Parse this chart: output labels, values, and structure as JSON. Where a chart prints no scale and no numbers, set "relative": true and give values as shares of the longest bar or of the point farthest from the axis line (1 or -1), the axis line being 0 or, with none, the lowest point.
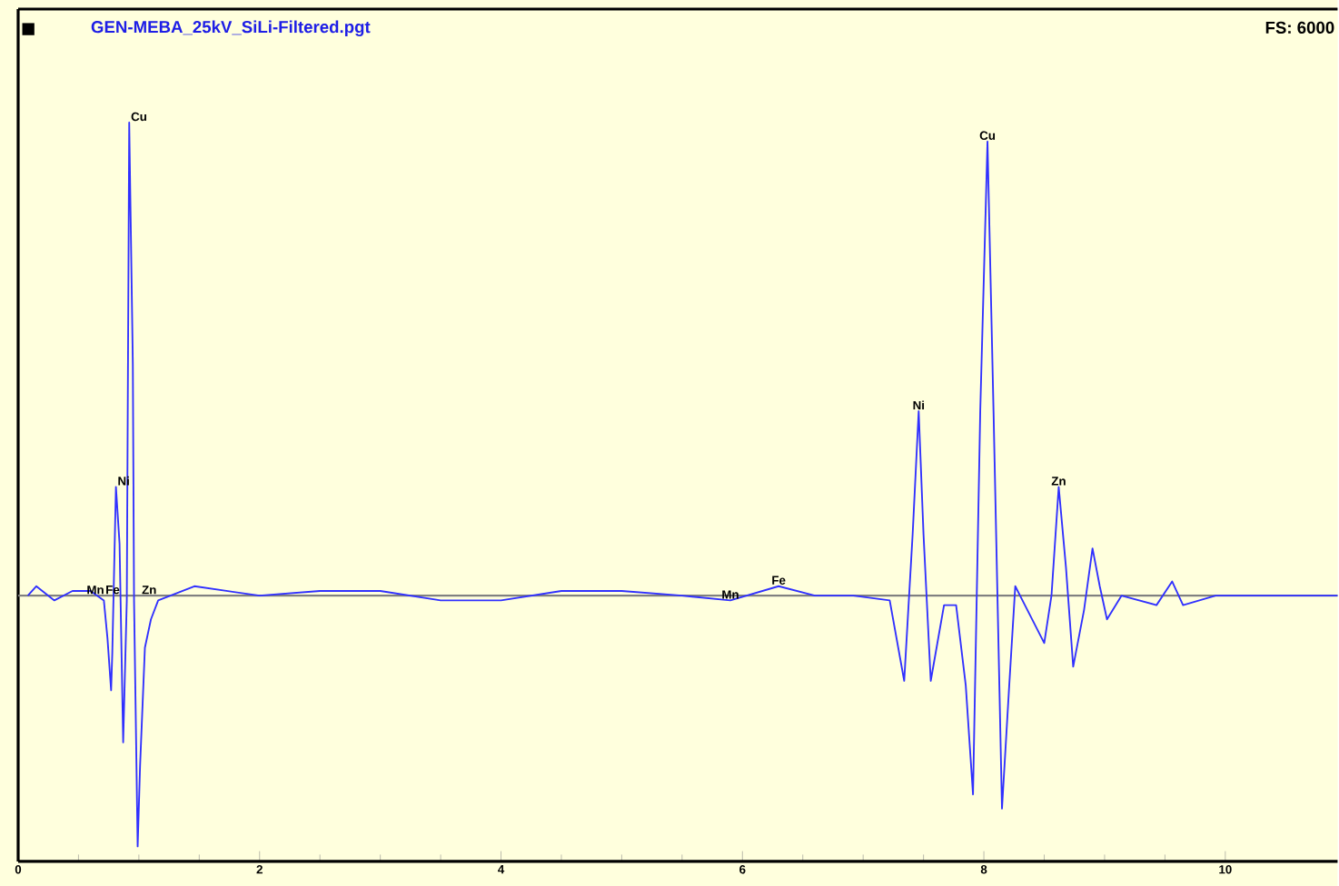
{
  "chart_data": {
    "type": "line",
    "title": "GEN-MEBA_25kV_SiLi-Filtered.pgt",
    "relative": true,
    "color": "#3030ff",
    "xlim": [
      0,
      10.93
    ],
    "xticks": [
      0,
      2,
      4,
      6,
      8,
      10
    ],
    "grid": false,
    "marker": "none",
    "line_style": "solid",
    "x": [
      0.08,
      0.15,
      0.3,
      0.45,
      0.6,
      0.71,
      0.74,
      0.77,
      0.78,
      0.81,
      0.84,
      0.87,
      0.9,
      0.92,
      0.95,
      0.96,
      0.99,
      1.01,
      1.05,
      1.1,
      1.16,
      1.46,
      2.0,
      2.5,
      3.0,
      3.5,
      4.0,
      4.5,
      5.0,
      5.5,
      5.9,
      6.3,
      6.6,
      6.92,
      7.22,
      7.34,
      7.41,
      7.46,
      7.5,
      7.56,
      7.67,
      7.77,
      7.85,
      7.91,
      7.97,
      8.03,
      8.08,
      8.15,
      8.21,
      8.26,
      8.32,
      8.5,
      8.56,
      8.62,
      8.68,
      8.74,
      8.83,
      8.9,
      8.96,
      9.02,
      9.14,
      9.43,
      9.56,
      9.65,
      9.92,
      10.93
    ],
    "values": [
      0,
      0.02,
      -0.01,
      0.01,
      0.01,
      -0.01,
      -0.09,
      -0.2,
      -0.12,
      0.23,
      0.11,
      -0.31,
      -0.01,
      1.0,
      0.49,
      -0.01,
      -0.53,
      -0.36,
      -0.11,
      -0.05,
      -0.01,
      0.02,
      0,
      0.01,
      0.01,
      -0.01,
      -0.01,
      0.01,
      0.01,
      0,
      -0.01,
      0.02,
      0,
      0,
      -0.01,
      -0.18,
      0.13,
      0.39,
      0.13,
      -0.18,
      -0.02,
      -0.02,
      -0.19,
      -0.42,
      0.39,
      0.96,
      0.39,
      -0.45,
      -0.19,
      0.02,
      -0.01,
      -0.1,
      0,
      0.23,
      0.06,
      -0.15,
      -0.03,
      0.1,
      0.02,
      -0.05,
      0,
      -0.02,
      0.03,
      -0.02,
      0,
      0
    ],
    "annotations": [
      {
        "text": "Mn",
        "x": 0.64,
        "y": 0
      },
      {
        "text": "Fe",
        "x": 0.71,
        "y": 0
      },
      {
        "text": "Ni",
        "x": 0.81,
        "y": 0.23
      },
      {
        "text": "Cu",
        "x": 0.92,
        "y": 1.0
      },
      {
        "text": "Zn",
        "x": 1.01,
        "y": 0
      },
      {
        "text": "Mn",
        "x": 5.9,
        "y": -0.01
      },
      {
        "text": "Fe",
        "x": 6.3,
        "y": 0.02
      },
      {
        "text": "Ni",
        "x": 7.46,
        "y": 0.39
      },
      {
        "text": "Cu",
        "x": 8.03,
        "y": 0.96
      },
      {
        "text": "Zn",
        "x": 8.62,
        "y": 0.23
      },
      "FS: 6000"
    ]
  }
}
